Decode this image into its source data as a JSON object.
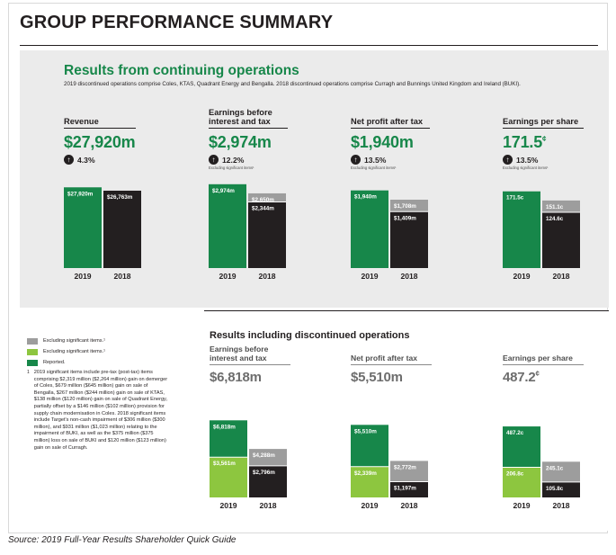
{
  "page": {
    "title": "GROUP PERFORMANCE SUMMARY",
    "source": "Source: 2019 Full-Year Results Shareholder Quick Guide"
  },
  "colors": {
    "reported": "#17874a",
    "excl_light_green": "#8dc63f",
    "excl_grey": "#9d9d9d",
    "prior_year": "#231f20",
    "panel_background": "#ebebeb"
  },
  "continuing": {
    "title": "Results from continuing operations",
    "note": "2019 discontinued operations comprise Coles, KTAS, Quadrant Energy and Bengalla. 2018 discontinued operations comprise Curragh and Bunnings United Kingdom and Ireland (BUKI).",
    "metrics": [
      {
        "label": "Revenue",
        "value": "$27,920m",
        "growth": "4.3%",
        "growth_note": "",
        "growth_icon": "arrow-up-icon"
      },
      {
        "label": "Earnings before interest and tax",
        "value": "$2,974m",
        "growth": "12.2%",
        "growth_note": "Excluding significant items¹",
        "growth_icon": "arrow-up-icon"
      },
      {
        "label": "Net profit after tax",
        "value": "$1,940m",
        "growth": "13.5%",
        "growth_note": "Excluding significant items¹",
        "growth_icon": "arrow-up-icon"
      },
      {
        "label": "Earnings per share",
        "value": "171.5",
        "value_unit": "¢",
        "growth": "13.5%",
        "growth_note": "Excluding significant items¹",
        "growth_icon": "arrow-up-icon"
      }
    ]
  },
  "discontinued": {
    "title": "Results including discontinued operations",
    "metrics": [
      {
        "label": "Earnings before interest and tax",
        "value": "$6,818m"
      },
      {
        "label": "Net profit after tax",
        "value": "$5,510m"
      },
      {
        "label": "Earnings per share",
        "value": "487.2",
        "value_unit": "¢"
      }
    ]
  },
  "legend": {
    "items": [
      {
        "label": "Excluding significant items.¹",
        "color": "#9d9d9d"
      },
      {
        "label": "Excluding significant items.¹",
        "color": "#8dc63f"
      },
      {
        "label": "Reported.",
        "color": "#17874a"
      }
    ],
    "note_mark": "1",
    "note": "2019 significant items include pre-tax (post-tax) items comprising $2,319 million ($2,264 million) gain on demerger of Coles, $679 million ($645 million) gain on sale of Bengalla, $267 million ($244 million) gain on sale of KTAS, $138 million ($120 million) gain on sale of Quadrant Energy, partially offset by a $146 million ($102 million) provision for supply chain modernisation in Coles. 2018 significant items include Target's non-cash impairment of $306 million ($300 million), and $931 million ($1,023 million) relating to the impairment of BUKI, as well as the $375 million ($375 million) loss on sale of BUKI and $120 million ($123 million) gain on sale of Curragh."
  },
  "chart_data": [
    {
      "type": "bar",
      "title": "Revenue",
      "unit": "$m",
      "categories": [
        "2019",
        "2018"
      ],
      "series": [
        {
          "values": [
            27920,
            26763
          ],
          "labels": [
            "$27,920m",
            "$26,763m"
          ],
          "colors": [
            "#17874a",
            "#231f20"
          ]
        }
      ],
      "ylim": [
        0,
        28000
      ]
    },
    {
      "type": "bar",
      "title": "Earnings before interest and tax",
      "unit": "$m",
      "categories": [
        "2019",
        "2018"
      ],
      "series": [
        {
          "name": "Reported.",
          "values": [
            2974,
            2344
          ],
          "labels": [
            "$2,974m",
            "$2,344m"
          ],
          "colors": [
            "#17874a",
            "#231f20"
          ]
        },
        {
          "name": "Excluding significant items.",
          "values": [
            null,
            2650
          ],
          "labels": [
            null,
            "$2,650m"
          ],
          "colors": [
            null,
            "#9d9d9d"
          ]
        }
      ],
      "ylim": [
        0,
        3000
      ]
    },
    {
      "type": "bar",
      "title": "Net profit after tax",
      "unit": "$m",
      "categories": [
        "2019",
        "2018"
      ],
      "series": [
        {
          "name": "Reported.",
          "values": [
            1940,
            1409
          ],
          "labels": [
            "$1,940m",
            "$1,409m"
          ],
          "colors": [
            "#17874a",
            "#231f20"
          ]
        },
        {
          "name": "Excluding significant items.",
          "values": [
            null,
            1708
          ],
          "labels": [
            null,
            "$1,708m"
          ],
          "colors": [
            null,
            "#9d9d9d"
          ]
        }
      ],
      "ylim": [
        0,
        2000
      ]
    },
    {
      "type": "bar",
      "title": "Earnings per share",
      "unit": "¢",
      "categories": [
        "2019",
        "2018"
      ],
      "series": [
        {
          "name": "Reported.",
          "values": [
            171.5,
            124.6
          ],
          "labels": [
            "171.5c",
            "124.6c"
          ],
          "colors": [
            "#17874a",
            "#231f20"
          ]
        },
        {
          "name": "Excluding significant items.",
          "values": [
            null,
            151.1
          ],
          "labels": [
            null,
            "151.1c"
          ],
          "colors": [
            null,
            "#9d9d9d"
          ]
        }
      ],
      "ylim": [
        0,
        175
      ]
    },
    {
      "type": "bar",
      "title": "Earnings before interest and tax",
      "unit": "$m",
      "categories": [
        "2019",
        "2018"
      ],
      "series": [
        {
          "name": "Reported.",
          "values": [
            6818,
            2796
          ],
          "labels": [
            "$6,818m",
            "$2,796m"
          ],
          "colors": [
            "#17874a",
            "#231f20"
          ]
        },
        {
          "name": "Excluding significant items.",
          "values": [
            3561,
            4288
          ],
          "labels": [
            "$3,561m",
            "$4,288m"
          ],
          "colors": [
            "#8dc63f",
            "#9d9d9d"
          ]
        }
      ],
      "ylim": [
        0,
        7000
      ]
    },
    {
      "type": "bar",
      "title": "Net profit after tax",
      "unit": "$m",
      "categories": [
        "2019",
        "2018"
      ],
      "series": [
        {
          "name": "Reported.",
          "values": [
            5510,
            1197
          ],
          "labels": [
            "$5,510m",
            "$1,197m"
          ],
          "colors": [
            "#17874a",
            "#231f20"
          ]
        },
        {
          "name": "Excluding significant items.",
          "values": [
            2339,
            2772
          ],
          "labels": [
            "$2,339m",
            "$2,772m"
          ],
          "colors": [
            "#8dc63f",
            "#9d9d9d"
          ]
        }
      ],
      "ylim": [
        0,
        5600
      ]
    },
    {
      "type": "bar",
      "title": "Earnings per share",
      "unit": "¢",
      "categories": [
        "2019",
        "2018"
      ],
      "series": [
        {
          "name": "Reported.",
          "values": [
            487.2,
            105.8
          ],
          "labels": [
            "487.2c",
            "105.8c"
          ],
          "colors": [
            "#17874a",
            "#231f20"
          ]
        },
        {
          "name": "Excluding significant items.",
          "values": [
            206.8,
            245.1
          ],
          "labels": [
            "206.8c",
            "245.1c"
          ],
          "colors": [
            "#8dc63f",
            "#9d9d9d"
          ]
        }
      ],
      "ylim": [
        0,
        500
      ]
    }
  ]
}
